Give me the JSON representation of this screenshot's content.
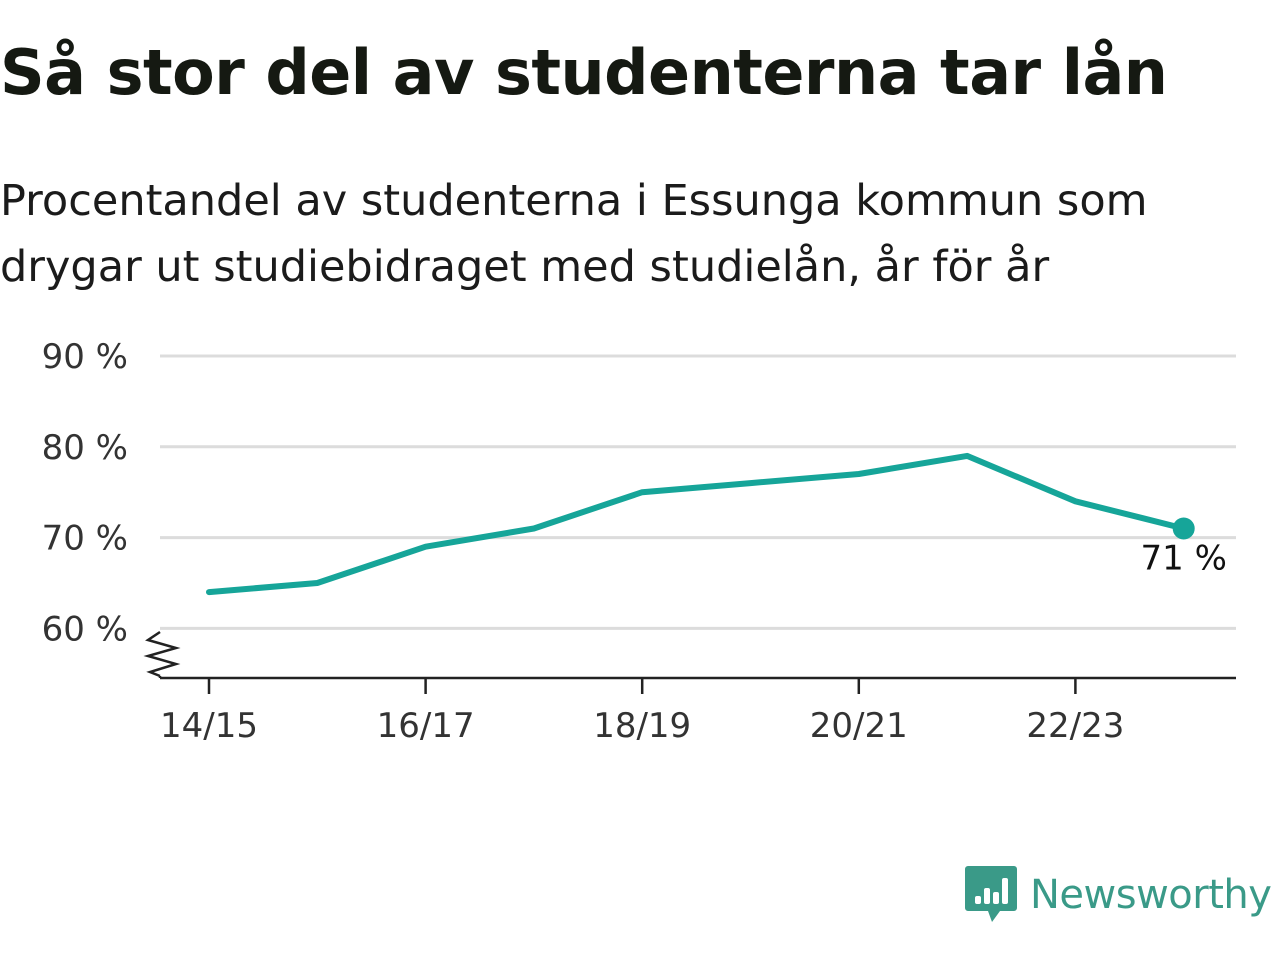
{
  "chart_data": {
    "type": "line",
    "title": "Så stor del av studenterna tar lån",
    "subtitle": "Procentandel av studenterna i Essunga kommun som drygar ut studiebidraget med studielån, år för år",
    "x": [
      "14/15",
      "15/16",
      "16/17",
      "17/18",
      "18/19",
      "19/20",
      "20/21",
      "21/22",
      "22/23",
      "23/24"
    ],
    "series": [
      {
        "values": [
          64,
          65,
          69,
          71,
          75,
          76,
          77,
          79,
          74,
          71
        ]
      }
    ],
    "x_tick_labels": [
      "14/15",
      "16/17",
      "18/19",
      "20/21",
      "22/23"
    ],
    "y_ticks": [
      60,
      70,
      80,
      90
    ],
    "y_tick_labels": [
      "60 %",
      "70 %",
      "80 %",
      "90 %"
    ],
    "ylim": [
      55,
      90
    ],
    "end_label": "71 %",
    "grid": true,
    "line_color": "#16a599",
    "y_axis_break": true
  },
  "brand": {
    "name": "Newsworthy",
    "icon": "newsworthy-logo-icon",
    "color": "#3a9a88"
  }
}
